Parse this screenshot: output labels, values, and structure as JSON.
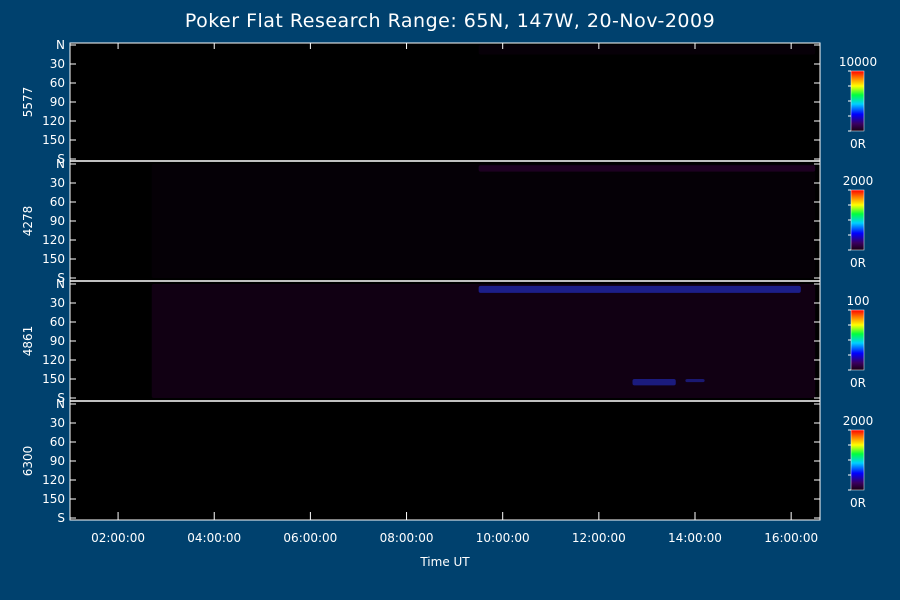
{
  "chart_data": {
    "type": "heatmap",
    "title": "Poker Flat Research Range: 65N, 147W, 20-Nov-2009",
    "xlabel": "Time UT",
    "x_tick_labels": [
      "02:00:00",
      "04:00:00",
      "06:00:00",
      "08:00:00",
      "10:00:00",
      "12:00:00",
      "14:00:00",
      "16:00:00"
    ],
    "x_ticks_hours": [
      2,
      4,
      6,
      8,
      10,
      12,
      14,
      16
    ],
    "x_range_hours": [
      1.0,
      16.6
    ],
    "y_tick_labels": [
      "N",
      "30",
      "60",
      "90",
      "120",
      "150",
      "S"
    ],
    "y_ticks": [
      0,
      30,
      60,
      90,
      120,
      150,
      180
    ],
    "y_range": [
      0,
      180
    ],
    "panels": [
      {
        "name": "5577",
        "colorbar_max": "10000",
        "colorbar_min": "0R",
        "emission_features": [
          {
            "t_start": 9.5,
            "t_end": 16.5,
            "angle_start": 0,
            "angle_end": 15,
            "intensity": 0.05
          }
        ]
      },
      {
        "name": "4278",
        "colorbar_max": "2000",
        "colorbar_min": "0R",
        "emission_features": [
          {
            "t_start": 2.7,
            "t_end": 16.5,
            "angle_start": 0,
            "angle_end": 180,
            "intensity": 0.04
          },
          {
            "t_start": 9.5,
            "t_end": 16.5,
            "angle_start": 2,
            "angle_end": 12,
            "intensity": 0.18
          }
        ]
      },
      {
        "name": "4861",
        "colorbar_max": "100",
        "colorbar_min": "0R",
        "emission_features": [
          {
            "t_start": 2.7,
            "t_end": 16.5,
            "angle_start": 0,
            "angle_end": 180,
            "intensity": 0.12
          },
          {
            "t_start": 9.5,
            "t_end": 16.2,
            "angle_start": 3,
            "angle_end": 14,
            "intensity": 0.5
          },
          {
            "t_start": 12.7,
            "t_end": 13.6,
            "angle_start": 150,
            "angle_end": 160,
            "intensity": 0.45
          },
          {
            "t_start": 13.8,
            "t_end": 14.2,
            "angle_start": 150,
            "angle_end": 155,
            "intensity": 0.4
          }
        ]
      },
      {
        "name": "6300",
        "colorbar_max": "2000",
        "colorbar_min": "0R",
        "emission_features": []
      }
    ]
  }
}
